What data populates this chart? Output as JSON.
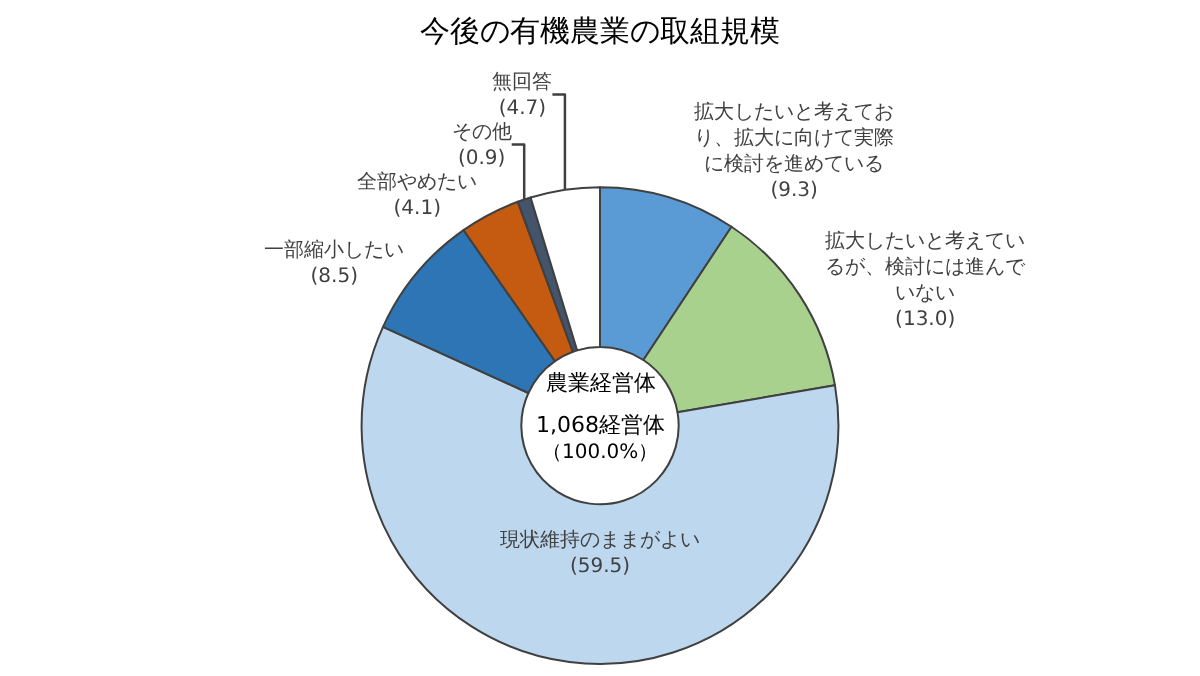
{
  "chart_data": {
    "type": "donut",
    "title": "今後の有機農業の取組規模",
    "categories": [
      "拡大したいと考えており、拡大に向けて実際に検討を進めている",
      "拡大したいと考えているが、検討には進んでいない",
      "現状維持のままがよい",
      "一部縮小したい",
      "全部やめたい",
      "その他",
      "無回答"
    ],
    "values": [
      9.3,
      13.0,
      59.5,
      8.5,
      4.1,
      0.9,
      4.7
    ],
    "value_labels": [
      "(9.3)",
      "(13.0)",
      "(59.5)",
      "(8.5)",
      "(4.1)",
      "(0.9)",
      "(4.7)"
    ],
    "colors": [
      "#5b9bd5",
      "#a9d18e",
      "#bdd7ee",
      "#2e75b6",
      "#c55a11",
      "#44546a",
      "#ffffff"
    ],
    "annotations": [
      "農業経営体",
      "1,068経営体",
      "（100.0%）"
    ],
    "legend": false
  }
}
